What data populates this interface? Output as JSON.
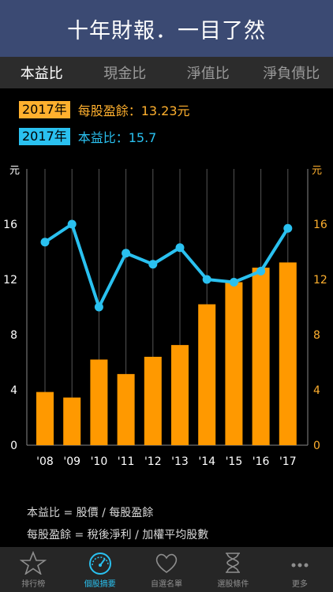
{
  "header": {
    "title": "十年財報．一目了然"
  },
  "tabs": [
    {
      "label": "本益比",
      "active": true
    },
    {
      "label": "現金比",
      "active": false
    },
    {
      "label": "淨值比",
      "active": false
    },
    {
      "label": "淨負債比",
      "active": false
    }
  ],
  "legend": {
    "eps": {
      "year": "2017年",
      "text": "每股盈餘：13.23元"
    },
    "pe": {
      "year": "2017年",
      "text": "本益比：15.7"
    }
  },
  "chart_data": {
    "type": "bar+line",
    "categories": [
      "'08",
      "'09",
      "'10",
      "'11",
      "'12",
      "'13",
      "'14",
      "'15",
      "'16",
      "'17"
    ],
    "series": [
      {
        "name": "每股盈餘",
        "kind": "bar",
        "color": "#ff9900",
        "values": [
          3.85,
          3.45,
          6.2,
          5.15,
          6.4,
          7.25,
          10.2,
          11.8,
          12.85,
          13.23
        ]
      },
      {
        "name": "本益比",
        "kind": "line",
        "color": "#2ac1f0",
        "values": [
          14.7,
          16.0,
          10.0,
          13.9,
          13.1,
          14.3,
          12.0,
          11.8,
          12.6,
          15.7
        ]
      }
    ],
    "ylim": [
      0,
      20
    ],
    "yticks": [
      "0",
      "4",
      "8",
      "12",
      "16"
    ],
    "y_unit_left": "元",
    "y_unit_right": "元",
    "grid": true
  },
  "formulas": {
    "line1": "本益比 = 股價 / 每股盈餘",
    "line2": "每股盈餘 = 稅後淨利 / 加權平均股數"
  },
  "bottom_nav": [
    {
      "label": "排行榜",
      "icon": "star-icon",
      "active": false
    },
    {
      "label": "個股摘要",
      "icon": "gauge-icon",
      "active": true
    },
    {
      "label": "自選名單",
      "icon": "heart-icon",
      "active": false
    },
    {
      "label": "選股條件",
      "icon": "hourglass-icon",
      "active": false
    },
    {
      "label": "更多",
      "icon": "more-icon",
      "active": false
    }
  ],
  "colors": {
    "accent": "#2ac1f0",
    "bar": "#ff9900",
    "header": "#3b4a73"
  }
}
